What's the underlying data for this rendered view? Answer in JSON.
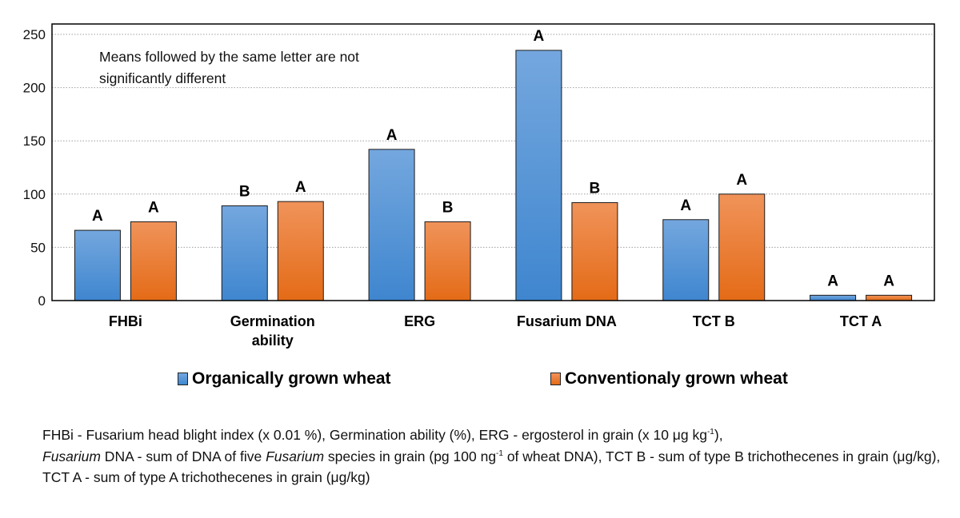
{
  "chart_data": {
    "type": "bar",
    "categories": [
      "FHBi",
      "Germination ability",
      "ERG",
      "Fusarium DNA",
      "TCT B",
      "TCT A"
    ],
    "series": [
      {
        "name": "Organically grown wheat",
        "color": "#4a8fd6",
        "values": [
          66,
          89,
          142,
          235,
          76,
          5
        ],
        "letters": [
          "A",
          "B",
          "A",
          "A",
          "A",
          "A"
        ]
      },
      {
        "name": "Conventionaly grown wheat",
        "color": "#f07b2a",
        "values": [
          74,
          93,
          74,
          92,
          100,
          5
        ],
        "letters": [
          "A",
          "A",
          "B",
          "B",
          "A",
          "A"
        ]
      }
    ],
    "ylim": [
      0,
      250
    ],
    "yticks": [
      0,
      50,
      100,
      150,
      200,
      250
    ],
    "grid": true,
    "legend_placement": "bottom",
    "xlabel": "",
    "ylabel": "",
    "annotation": "Means followed by the same letter are not significantly different"
  },
  "caption": {
    "p1": "FHBi - Fusarium head blight index (x 0.01 %), Germination ability (%), ERG - ergosterol in grain (x 10 μg kg",
    "sup1": "-1",
    "p2": "),",
    "i1": "Fusarium",
    "p3": " DNA - sum of DNA of five ",
    "i2": "Fusarium",
    "p4": " species in grain (pg 100 ng",
    "sup2": "-1",
    "p5": " of wheat DNA), TCT B - sum of type B trichothecenes in grain (μg/kg), TCT A - sum of type A trichothecenes in grain (μg/kg)"
  }
}
